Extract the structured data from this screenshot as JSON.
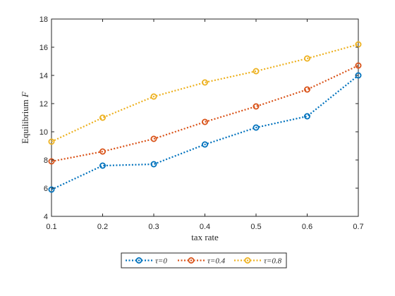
{
  "chart_data": {
    "type": "line",
    "xlabel": "tax rate",
    "ylabel_main": "Equilibrium ",
    "ylabel_var": "F",
    "xlim": [
      0.1,
      0.7
    ],
    "ylim": [
      4,
      18
    ],
    "xticks": [
      "0.1",
      "0.2",
      "0.3",
      "0.4",
      "0.5",
      "0.6",
      "0.7"
    ],
    "yticks": [
      "4",
      "6",
      "8",
      "10",
      "12",
      "14",
      "16",
      "18"
    ],
    "x": [
      0.1,
      0.2,
      0.3,
      0.4,
      0.5,
      0.6,
      0.7
    ],
    "grid": false,
    "legend_position": "bottom-outside",
    "series": [
      {
        "name": "τ=0",
        "color": "#0072BD",
        "values": [
          5.9,
          7.6,
          7.7,
          9.1,
          10.3,
          11.1,
          14.0
        ]
      },
      {
        "name": "τ=0.4",
        "color": "#D95319",
        "values": [
          7.9,
          8.6,
          9.5,
          10.7,
          11.8,
          13.0,
          14.7
        ]
      },
      {
        "name": "τ=0.8",
        "color": "#EDB120",
        "values": [
          9.3,
          11.0,
          12.5,
          13.5,
          14.3,
          15.2,
          16.2
        ]
      }
    ]
  }
}
